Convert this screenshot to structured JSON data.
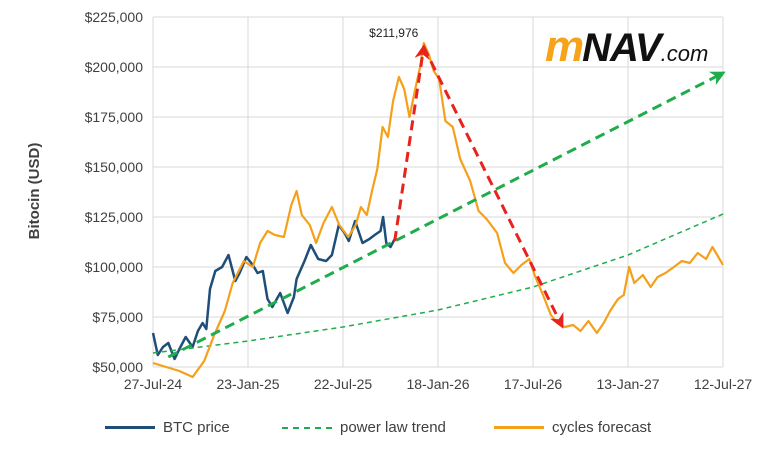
{
  "chart_data": {
    "type": "line",
    "title": "",
    "ylabel": "Bitocin (USD)",
    "xlabel": "",
    "ylim": [
      50000,
      225000
    ],
    "xlim": [
      "2024-07-27",
      "2027-07-12"
    ],
    "y_ticks": [
      "$50,000",
      "$75,000",
      "$100,000",
      "$125,000",
      "$150,000",
      "$175,000",
      "$200,000",
      "$225,000"
    ],
    "y_tick_values": [
      50000,
      75000,
      100000,
      125000,
      150000,
      175000,
      200000,
      225000
    ],
    "x_ticks": [
      "27-Jul-24",
      "23-Jan-25",
      "22-Jul-25",
      "18-Jan-26",
      "17-Jul-26",
      "13-Jan-27",
      "12-Jul-27"
    ],
    "x_tick_dates": [
      "2024-07-27",
      "2025-01-23",
      "2025-07-22",
      "2026-01-18",
      "2026-07-17",
      "2027-01-13",
      "2027-07-12"
    ],
    "grid": true,
    "legend_position": "bottom",
    "series": [
      {
        "name": "BTC price",
        "color": "#1f4e79",
        "style": "solid",
        "points": [
          [
            "2024-07-27",
            67000
          ],
          [
            "2024-08-05",
            56000
          ],
          [
            "2024-08-15",
            60000
          ],
          [
            "2024-08-25",
            62000
          ],
          [
            "2024-09-06",
            54000
          ],
          [
            "2024-09-15",
            59000
          ],
          [
            "2024-09-27",
            65000
          ],
          [
            "2024-10-10",
            60000
          ],
          [
            "2024-10-20",
            68000
          ],
          [
            "2024-10-29",
            72000
          ],
          [
            "2024-11-05",
            69000
          ],
          [
            "2024-11-12",
            89000
          ],
          [
            "2024-11-22",
            98000
          ],
          [
            "2024-12-05",
            100000
          ],
          [
            "2024-12-17",
            106000
          ],
          [
            "2024-12-30",
            93000
          ],
          [
            "2025-01-07",
            97000
          ],
          [
            "2025-01-20",
            105000
          ],
          [
            "2025-02-01",
            101000
          ],
          [
            "2025-02-10",
            97000
          ],
          [
            "2025-02-20",
            98000
          ],
          [
            "2025-03-01",
            84000
          ],
          [
            "2025-03-10",
            80000
          ],
          [
            "2025-03-25",
            87000
          ],
          [
            "2025-04-08",
            77000
          ],
          [
            "2025-04-20",
            85000
          ],
          [
            "2025-04-25",
            94000
          ],
          [
            "2025-05-10",
            103000
          ],
          [
            "2025-05-22",
            111000
          ],
          [
            "2025-06-05",
            104000
          ],
          [
            "2025-06-20",
            103000
          ],
          [
            "2025-07-01",
            106000
          ],
          [
            "2025-07-14",
            121000
          ],
          [
            "2025-07-25",
            117000
          ],
          [
            "2025-08-02",
            113000
          ],
          [
            "2025-08-14",
            123000
          ],
          [
            "2025-08-28",
            112000
          ],
          [
            "2025-09-10",
            114000
          ],
          [
            "2025-09-20",
            116000
          ],
          [
            "2025-10-01",
            118000
          ],
          [
            "2025-10-06",
            125000
          ],
          [
            "2025-10-12",
            112000
          ],
          [
            "2025-10-20",
            110000
          ],
          [
            "2025-10-28",
            114000
          ]
        ]
      },
      {
        "name": "power law trend",
        "color": "#1fad4b",
        "style": "dotted",
        "points": [
          [
            "2024-07-27",
            57000
          ],
          [
            "2025-01-23",
            63000
          ],
          [
            "2025-07-22",
            70000
          ],
          [
            "2026-01-18",
            78500
          ],
          [
            "2026-07-17",
            90000
          ],
          [
            "2027-01-13",
            106000
          ],
          [
            "2027-07-12",
            126500
          ]
        ]
      },
      {
        "name": "cycles forecast",
        "color": "#f5a01a",
        "style": "solid",
        "points": [
          [
            "2024-07-27",
            52000
          ],
          [
            "2024-09-15",
            48000
          ],
          [
            "2024-10-10",
            45000
          ],
          [
            "2024-11-01",
            53000
          ],
          [
            "2024-11-20",
            66000
          ],
          [
            "2024-12-10",
            78000
          ],
          [
            "2024-12-25",
            92000
          ],
          [
            "2025-01-15",
            103000
          ],
          [
            "2025-02-01",
            100000
          ],
          [
            "2025-02-15",
            112000
          ],
          [
            "2025-03-01",
            118000
          ],
          [
            "2025-03-15",
            116000
          ],
          [
            "2025-04-01",
            115000
          ],
          [
            "2025-04-15",
            131000
          ],
          [
            "2025-04-25",
            138000
          ],
          [
            "2025-05-05",
            126000
          ],
          [
            "2025-05-20",
            121000
          ],
          [
            "2025-06-01",
            112000
          ],
          [
            "2025-06-15",
            122000
          ],
          [
            "2025-07-01",
            130000
          ],
          [
            "2025-07-15",
            121000
          ],
          [
            "2025-08-01",
            115000
          ],
          [
            "2025-08-15",
            121000
          ],
          [
            "2025-08-25",
            130000
          ],
          [
            "2025-09-05",
            126000
          ],
          [
            "2025-09-15",
            138000
          ],
          [
            "2025-09-25",
            149000
          ],
          [
            "2025-10-05",
            170000
          ],
          [
            "2025-10-15",
            165000
          ],
          [
            "2025-10-25",
            183000
          ],
          [
            "2025-11-05",
            195000
          ],
          [
            "2025-11-15",
            189000
          ],
          [
            "2025-11-25",
            175000
          ],
          [
            "2025-12-05",
            188000
          ],
          [
            "2025-12-15",
            200000
          ],
          [
            "2025-12-22",
            211976
          ],
          [
            "2026-01-01",
            206000
          ],
          [
            "2026-01-10",
            198000
          ],
          [
            "2026-01-20",
            194000
          ],
          [
            "2026-02-01",
            173000
          ],
          [
            "2026-02-15",
            170000
          ],
          [
            "2026-03-01",
            154000
          ],
          [
            "2026-03-20",
            143000
          ],
          [
            "2026-04-05",
            128000
          ],
          [
            "2026-04-20",
            124000
          ],
          [
            "2026-05-10",
            117000
          ],
          [
            "2026-05-25",
            102000
          ],
          [
            "2026-06-10",
            97000
          ],
          [
            "2026-06-25",
            101000
          ],
          [
            "2026-07-10",
            104000
          ],
          [
            "2026-07-20",
            96000
          ],
          [
            "2026-08-05",
            86000
          ],
          [
            "2026-08-20",
            76000
          ],
          [
            "2026-09-01",
            72000
          ],
          [
            "2026-09-15",
            70000
          ],
          [
            "2026-10-01",
            71000
          ],
          [
            "2026-10-15",
            68000
          ],
          [
            "2026-10-30",
            73000
          ],
          [
            "2026-11-15",
            67000
          ],
          [
            "2026-11-28",
            72000
          ],
          [
            "2026-12-10",
            78000
          ],
          [
            "2026-12-25",
            84000
          ],
          [
            "2027-01-05",
            86000
          ],
          [
            "2027-01-15",
            100000
          ],
          [
            "2027-01-25",
            92000
          ],
          [
            "2027-02-10",
            96000
          ],
          [
            "2027-02-25",
            90000
          ],
          [
            "2027-03-10",
            95000
          ],
          [
            "2027-03-25",
            97000
          ],
          [
            "2027-04-10",
            100000
          ],
          [
            "2027-04-25",
            103000
          ],
          [
            "2027-05-10",
            102000
          ],
          [
            "2027-05-25",
            107000
          ],
          [
            "2027-06-10",
            104000
          ],
          [
            "2027-06-22",
            110000
          ],
          [
            "2027-07-01",
            106000
          ],
          [
            "2027-07-12",
            101000
          ]
        ]
      }
    ],
    "arrows": [
      {
        "color": "#1fad4b",
        "style": "dashed",
        "from": [
          "2024-08-25",
          55000
        ],
        "to": [
          "2027-07-12",
          197000
        ]
      },
      {
        "color": "#e8231d",
        "style": "dashed",
        "from": [
          "2025-10-28",
          113000
        ],
        "to": [
          "2025-12-22",
          210000
        ]
      },
      {
        "color": "#e8231d",
        "style": "dashed",
        "from": [
          "2025-12-22",
          210000
        ],
        "to": [
          "2026-09-10",
          70500
        ]
      }
    ],
    "annotations": [
      {
        "text": "$211,976",
        "x": "2025-12-22",
        "y": 211976
      }
    ],
    "logo": {
      "text": "mNAV.com",
      "parts": [
        "m",
        "NAV",
        ".com"
      ]
    }
  }
}
